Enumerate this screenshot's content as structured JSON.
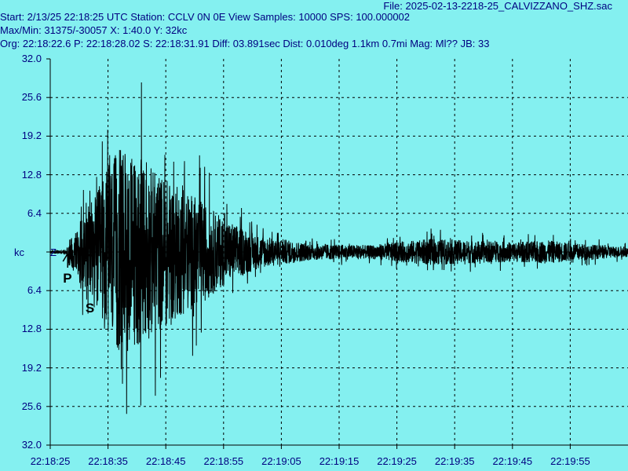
{
  "header": {
    "file": "File: 2025-02-13-2218-25_CALVIZZANO_SHZ.sac",
    "line1": "Start: 2/13/25 22:18:25 UTC Station: CCLV 0N 0E View Samples: 10000  SPS: 100.000002",
    "line2": "Max/Min: 31375/-30057 X: 1:40.0 Y: 32kc",
    "line3": "Org: 22:18:22.6 P: 22:18:28.02 S: 22:18:31.91 Diff: 03.891sec Dist: 0.010deg 1.1km 0.7mi  Mag: Ml?? JB: 33"
  },
  "chart_data": {
    "type": "line",
    "title": "",
    "y_unit": "kc",
    "component": "Z",
    "y_ticks": [
      "32.0",
      "25.6",
      "19.2",
      "12.8",
      "6.4",
      "",
      "6.4",
      "12.8",
      "19.2",
      "25.6",
      "32.0"
    ],
    "x_ticks": [
      "22:18:25",
      "22:18:35",
      "22:18:45",
      "22:18:55",
      "22:19:05",
      "22:19:15",
      "22:19:25",
      "22:19:35",
      "22:19:45",
      "22:19:55"
    ],
    "xlim_seconds_after_start": [
      0,
      100
    ],
    "ylim_kc": [
      -32,
      32
    ],
    "max": 31375,
    "min": -30057,
    "grid": true,
    "phases": [
      {
        "label": "P",
        "time": "22:18:28.02"
      },
      {
        "label": "S",
        "time": "22:18:31.91"
      }
    ],
    "envelope": {
      "time_s": [
        0,
        2.8,
        3.0,
        4.0,
        6.0,
        8.0,
        10.0,
        12.0,
        14.0,
        16.0,
        18.0,
        22.0,
        26.0,
        30.0,
        36.0,
        45.0,
        55.0,
        60.0,
        66.0,
        72.0,
        80.0,
        86.0,
        92.0,
        100.0
      ],
      "amp_kc": [
        0.5,
        0.6,
        3.0,
        6.0,
        12.0,
        18.0,
        26.0,
        31.0,
        30.0,
        28.0,
        25.0,
        20.0,
        16.0,
        10.0,
        5.0,
        2.5,
        2.0,
        3.0,
        4.0,
        3.5,
        3.0,
        3.5,
        2.5,
        1.5
      ]
    },
    "colors": {
      "background": "#84f0f0",
      "trace": "#000000",
      "grid": "#000000",
      "labels": "#000080"
    }
  }
}
